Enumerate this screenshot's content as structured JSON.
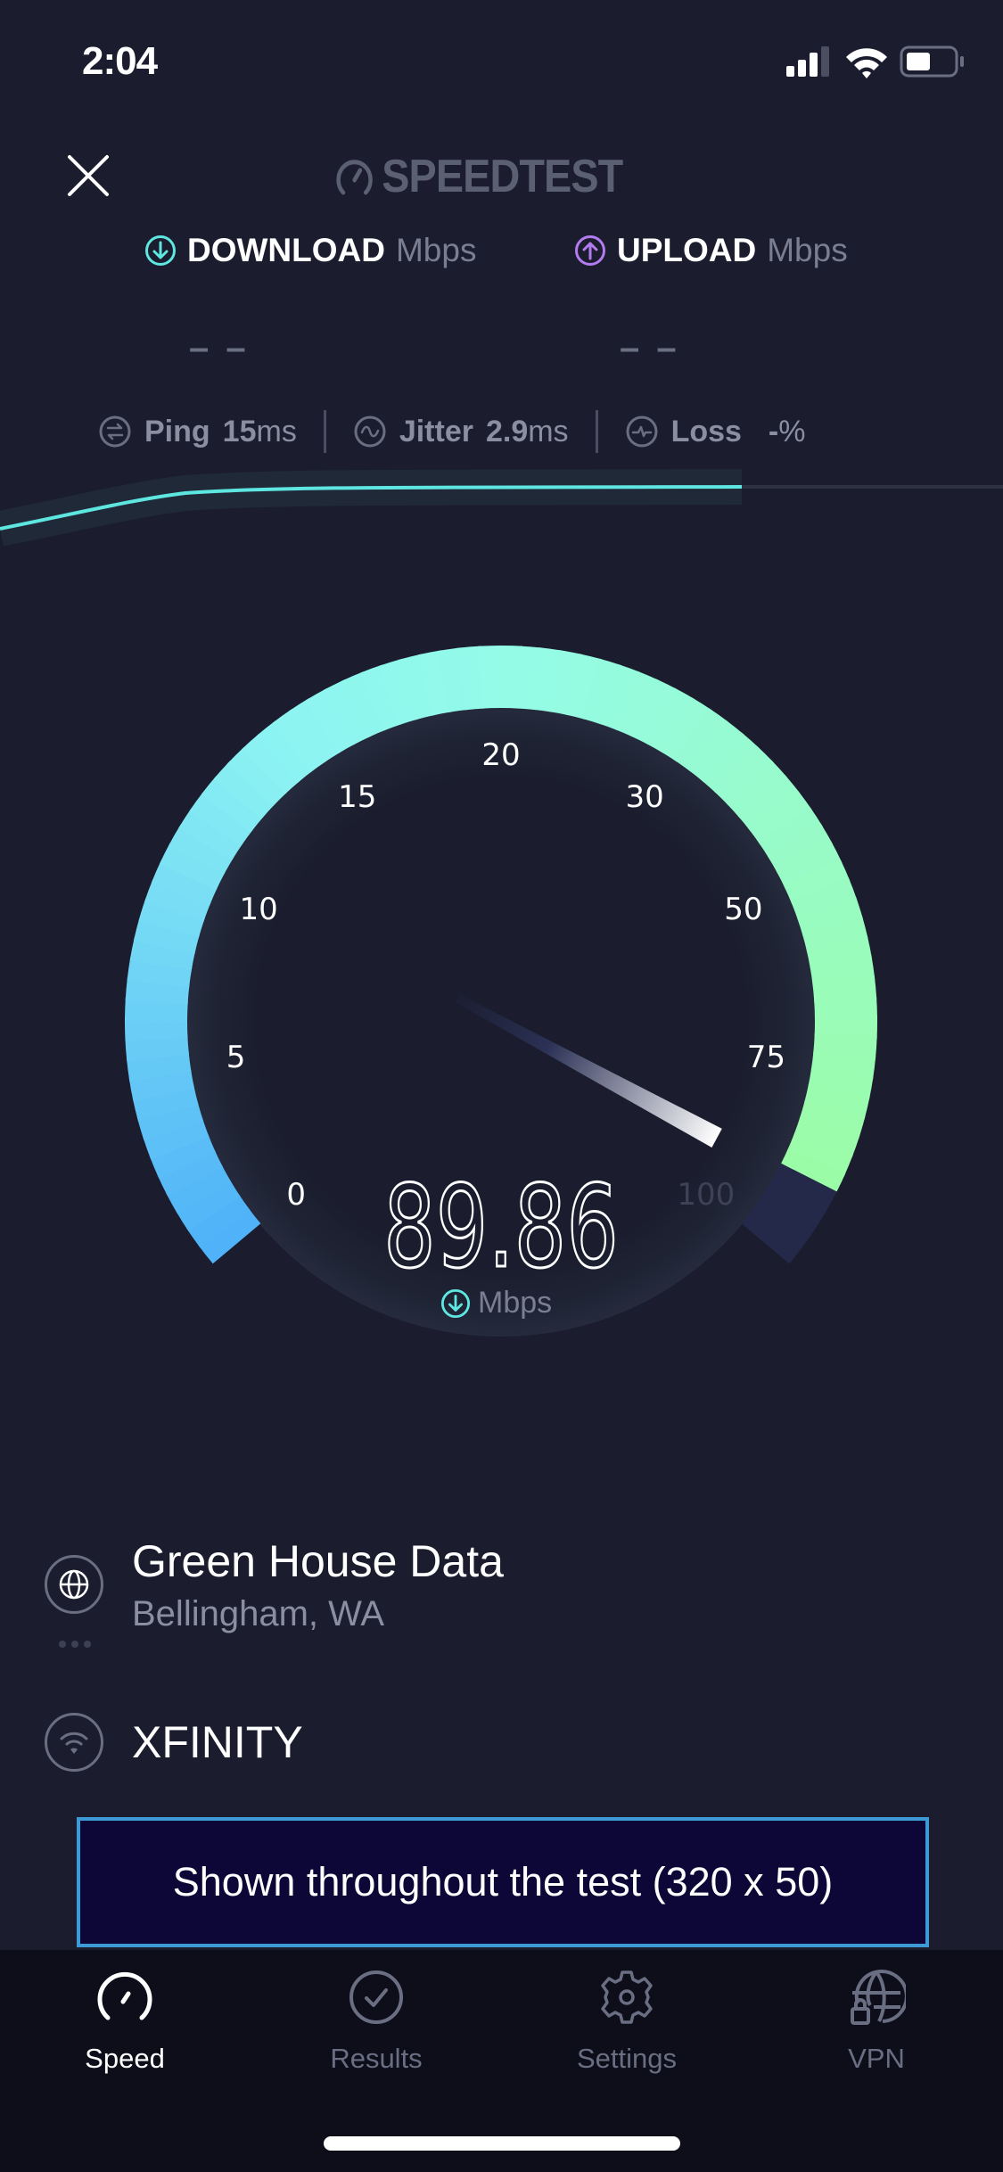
{
  "status_bar": {
    "time": "2:04",
    "signal_icon": "cellular-signal-icon",
    "wifi_icon": "wifi-icon",
    "battery_icon": "battery-icon",
    "battery_level": 0.45
  },
  "header": {
    "close_icon": "close-icon",
    "logo_text": "SPEEDTEST",
    "logo_icon": "speedometer-icon"
  },
  "metrics": {
    "download": {
      "label": "DOWNLOAD",
      "unit": "Mbps",
      "value": "– –",
      "icon": "download-arrow-icon",
      "color": "#5ee6e0"
    },
    "upload": {
      "label": "UPLOAD",
      "unit": "Mbps",
      "value": "– –",
      "icon": "upload-arrow-icon",
      "color": "#b27cf0"
    }
  },
  "stats": {
    "ping": {
      "label": "Ping",
      "value": "15",
      "unit": "ms"
    },
    "jitter": {
      "label": "Jitter",
      "value": "2.9",
      "unit": "ms"
    },
    "loss": {
      "label": "Loss",
      "value": "-",
      "unit": "%"
    }
  },
  "progress": {
    "fraction": 0.74,
    "line_color": "#5ee6e0"
  },
  "gauge": {
    "ticks": [
      "0",
      "5",
      "10",
      "15",
      "20",
      "30",
      "50",
      "75",
      "100"
    ],
    "value": "89.86",
    "value_numeric": 89.86,
    "unit": "Mbps",
    "colors": {
      "start": "#4fb1f8",
      "mid": "#94fbe8",
      "end": "#9cfca0",
      "track": "#24294a"
    }
  },
  "server": {
    "name": "Green House Data",
    "location": "Bellingham, WA",
    "icon": "globe-icon"
  },
  "provider": {
    "name": "XFINITY",
    "icon": "wifi-icon"
  },
  "ad": {
    "text": "Shown throughout the test (320 x 50)"
  },
  "tabs": [
    {
      "label": "Speed",
      "icon": "speedometer-icon",
      "active": true
    },
    {
      "label": "Results",
      "icon": "check-circle-icon",
      "active": false
    },
    {
      "label": "Settings",
      "icon": "gear-icon",
      "active": false
    },
    {
      "label": "VPN",
      "icon": "globe-lock-icon",
      "active": false
    }
  ]
}
